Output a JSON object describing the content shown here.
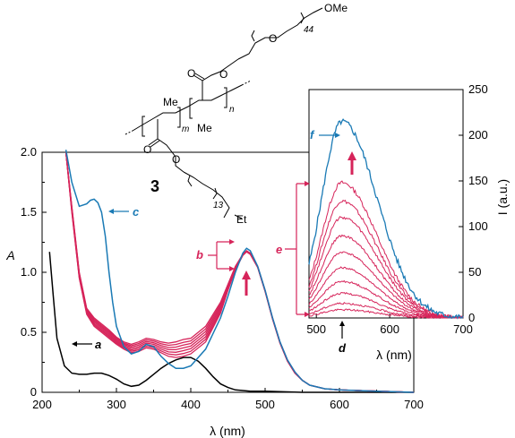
{
  "colors": {
    "black": "#000000",
    "blue": "#1a7ab5",
    "magenta": "#d6245a"
  },
  "structure": {
    "compound_number": "3",
    "ome": "OMe",
    "peg_repeat": "44",
    "me_a": "Me",
    "me_b": "Me",
    "sub_m": "m",
    "sub_n": "n",
    "alkyl_repeat": "13",
    "et_label": "Et",
    "o1": "O",
    "o2": "O",
    "o3": "O",
    "o4": "O",
    "o5": "O"
  },
  "chart_data": [
    {
      "type": "line",
      "panel": "main",
      "xlabel": "λ (nm)",
      "ylabel": "A",
      "xlim": [
        200,
        700
      ],
      "ylim": [
        0,
        2.0
      ],
      "xticks": [
        "200",
        "300",
        "400",
        "500",
        "600",
        "700"
      ],
      "yticks": [
        "0",
        "0.5",
        "1.0",
        "1.5",
        "2.0"
      ],
      "annotations": {
        "a": "a",
        "b": "b",
        "c": "c"
      },
      "series": [
        {
          "label": "a",
          "color": "#000000",
          "x": [
            210,
            215,
            220,
            230,
            240,
            250,
            260,
            270,
            280,
            290,
            300,
            310,
            320,
            330,
            340,
            350,
            360,
            370,
            380,
            390,
            400,
            410,
            420,
            430,
            440,
            450,
            460,
            480,
            500,
            550,
            600,
            700
          ],
          "y": [
            1.17,
            0.8,
            0.45,
            0.22,
            0.16,
            0.15,
            0.15,
            0.16,
            0.16,
            0.14,
            0.11,
            0.07,
            0.05,
            0.06,
            0.1,
            0.15,
            0.2,
            0.24,
            0.27,
            0.29,
            0.29,
            0.26,
            0.2,
            0.13,
            0.07,
            0.04,
            0.02,
            0.01,
            0.01,
            0.0,
            0.0,
            0.0
          ]
        },
        {
          "label": "c",
          "color": "#1a7ab5",
          "x": [
            232,
            240,
            250,
            260,
            265,
            270,
            275,
            280,
            285,
            290,
            295,
            300,
            310,
            320,
            330,
            340,
            350,
            360,
            370,
            380,
            390,
            400,
            420,
            440,
            450,
            460,
            470,
            475,
            480,
            490,
            500,
            510,
            520,
            530,
            540,
            550,
            560,
            580,
            600,
            650,
            700
          ],
          "y": [
            2.02,
            1.75,
            1.55,
            1.57,
            1.6,
            1.61,
            1.58,
            1.5,
            1.3,
            1.0,
            0.75,
            0.55,
            0.38,
            0.32,
            0.34,
            0.4,
            0.38,
            0.3,
            0.24,
            0.2,
            0.2,
            0.22,
            0.36,
            0.62,
            0.8,
            1.0,
            1.16,
            1.2,
            1.18,
            1.05,
            0.85,
            0.62,
            0.42,
            0.27,
            0.17,
            0.1,
            0.06,
            0.03,
            0.02,
            0.01,
            0.0
          ]
        },
        {
          "label": "b",
          "color": "#d6245a",
          "x": [
            232,
            240,
            250,
            260,
            270,
            280,
            290,
            300,
            310,
            320,
            330,
            340,
            350,
            360,
            370,
            380,
            390,
            400,
            420,
            440,
            450,
            460,
            470,
            475,
            480,
            490,
            500,
            510,
            520,
            530,
            540,
            550,
            560,
            580,
            600,
            650,
            700
          ],
          "y": [
            2.0,
            1.55,
            1.0,
            0.7,
            0.62,
            0.57,
            0.52,
            0.46,
            0.42,
            0.4,
            0.42,
            0.45,
            0.44,
            0.42,
            0.41,
            0.42,
            0.44,
            0.45,
            0.55,
            0.75,
            0.9,
            1.05,
            1.15,
            1.18,
            1.16,
            1.05,
            0.85,
            0.62,
            0.42,
            0.27,
            0.17,
            0.1,
            0.06,
            0.03,
            0.02,
            0.01,
            0.0
          ]
        },
        {
          "label": "e-low",
          "color": "#d6245a",
          "x": [
            232,
            240,
            250,
            260,
            270,
            280,
            290,
            300,
            310,
            320,
            330,
            340,
            350,
            360,
            370,
            380,
            390,
            400,
            420,
            440,
            450,
            460,
            470,
            475,
            480,
            490,
            500,
            510,
            520,
            530,
            540,
            550,
            560,
            580,
            600,
            650,
            700
          ],
          "y": [
            2.0,
            1.5,
            0.95,
            0.65,
            0.55,
            0.5,
            0.45,
            0.4,
            0.36,
            0.33,
            0.34,
            0.37,
            0.36,
            0.33,
            0.3,
            0.29,
            0.3,
            0.32,
            0.42,
            0.66,
            0.85,
            1.02,
            1.14,
            1.17,
            1.15,
            1.04,
            0.84,
            0.61,
            0.41,
            0.26,
            0.16,
            0.1,
            0.06,
            0.03,
            0.02,
            0.01,
            0.0
          ]
        }
      ]
    },
    {
      "type": "line",
      "panel": "inset",
      "xlabel": "λ (nm)",
      "ylabel": "I (a.u.)",
      "xlim": [
        490,
        700
      ],
      "ylim": [
        0,
        250
      ],
      "xticks": [
        "500",
        "600",
        "700"
      ],
      "yticks": [
        "0",
        "50",
        "100",
        "150",
        "200",
        "250"
      ],
      "annotations": {
        "d": "d",
        "e": "e",
        "f": "f"
      },
      "series": [
        {
          "label": "f",
          "color": "#1a7ab5",
          "peak_x": 535,
          "peak_y": 215
        },
        {
          "label": "e",
          "color": "#d6245a",
          "peak_x": 535,
          "peak_ys": [
            148,
            128,
            110,
            90,
            72,
            55,
            40,
            27,
            16,
            9
          ]
        }
      ]
    }
  ]
}
